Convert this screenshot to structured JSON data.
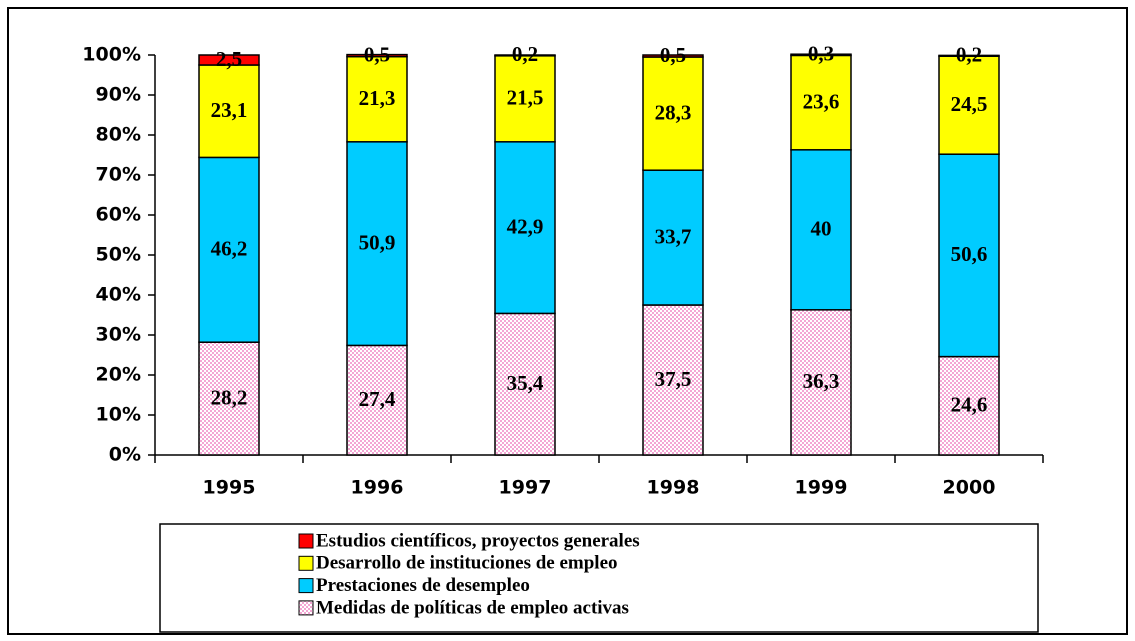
{
  "chart_data": {
    "type": "stacked_bar",
    "categories": [
      "1995",
      "1996",
      "1997",
      "1998",
      "1999",
      "2000"
    ],
    "series": [
      {
        "name": "Medidas de políticas de empleo activas",
        "color": "#ffd6ec",
        "values": [
          28.2,
          27.4,
          35.4,
          37.5,
          36.3,
          24.6
        ],
        "value_labels": [
          "28,2",
          "27,4",
          "35,4",
          "37,5",
          "36,3",
          "24,6"
        ]
      },
      {
        "name": "Prestaciones de desempleo",
        "color": "#00ccff",
        "values": [
          46.2,
          50.9,
          42.9,
          33.7,
          40,
          50.6
        ],
        "value_labels": [
          "46,2",
          "50,9",
          "42,9",
          "33,7",
          "40",
          "50,6"
        ]
      },
      {
        "name": "Desarrollo de instituciones de empleo",
        "color": "#ffff00",
        "values": [
          23.1,
          21.3,
          21.5,
          28.3,
          23.6,
          24.5
        ],
        "value_labels": [
          "23,1",
          "21,3",
          "21,5",
          "28,3",
          "23,6",
          "24,5"
        ]
      },
      {
        "name": "Estudios científicos, proyectos generales",
        "color": "#ff0000",
        "values": [
          2.5,
          0.5,
          0.2,
          0.5,
          0.3,
          0.2
        ],
        "value_labels": [
          "2,5",
          "0,5",
          "0,2",
          "0,5",
          "0,3",
          "0,2"
        ]
      }
    ],
    "ylim": [
      0,
      100
    ],
    "yticks": [
      {
        "value": 0,
        "label": "0%"
      },
      {
        "value": 10,
        "label": "10%"
      },
      {
        "value": 20,
        "label": "20%"
      },
      {
        "value": 30,
        "label": "30%"
      },
      {
        "value": 40,
        "label": "40%"
      },
      {
        "value": 50,
        "label": "50%"
      },
      {
        "value": 60,
        "label": "60%"
      },
      {
        "value": 70,
        "label": "70%"
      },
      {
        "value": 80,
        "label": "80%"
      },
      {
        "value": 90,
        "label": "90%"
      },
      {
        "value": 100,
        "label": "100%"
      }
    ],
    "legend": "bottom"
  }
}
